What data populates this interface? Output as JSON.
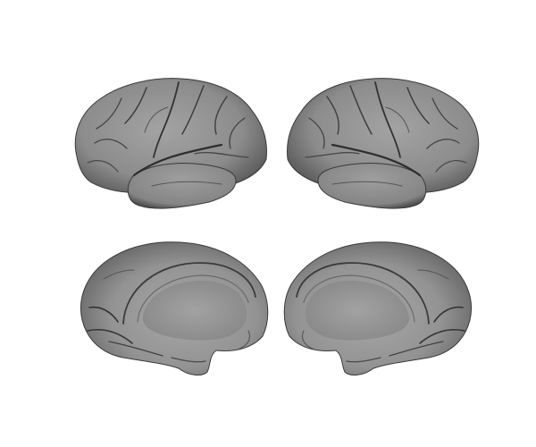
{
  "figure": {
    "views": [
      {
        "id": "left-lateral",
        "hemisphere": "left",
        "view": "lateral"
      },
      {
        "id": "right-lateral",
        "hemisphere": "right",
        "view": "lateral"
      },
      {
        "id": "left-medial",
        "hemisphere": "left",
        "view": "medial"
      },
      {
        "id": "right-medial",
        "hemisphere": "right",
        "view": "medial"
      }
    ],
    "colors": {
      "background": "#ffffff",
      "surface": "#8f8f8f",
      "surface_light": "#b0b0b0",
      "surface_dark": "#2e2e2e",
      "outline": "#3a3a3a"
    }
  }
}
